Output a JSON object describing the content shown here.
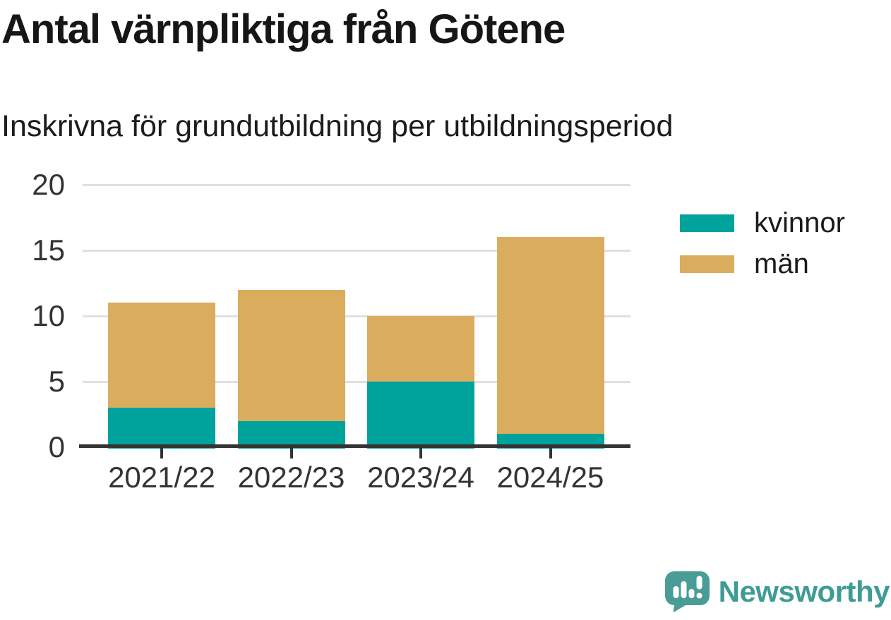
{
  "header": {
    "title": "Antal värnpliktiga från Götene",
    "subtitle": "Inskrivna för grundutbildning per utbildningsperiod"
  },
  "chart_data": {
    "type": "bar",
    "stacked": true,
    "title": "Antal värnpliktiga från Götene",
    "subtitle": "Inskrivna för grundutbildning per utbildningsperiod",
    "categories": [
      "2021/22",
      "2022/23",
      "2023/24",
      "2024/25"
    ],
    "series": [
      {
        "name": "kvinnor",
        "color": "#00A39B",
        "values": [
          3,
          2,
          5,
          1
        ]
      },
      {
        "name": "män",
        "color": "#DAAD5E",
        "values": [
          8,
          10,
          5,
          15
        ]
      }
    ],
    "totals": [
      11,
      12,
      10,
      16
    ],
    "xlabel": "",
    "ylabel": "",
    "ylim": [
      0,
      20
    ],
    "yticks": [
      0,
      5,
      10,
      15,
      20
    ],
    "grid": true,
    "gridline_color": "#E0E0E0",
    "axis_color": "#333333",
    "tick_label_color": "#333333",
    "legend_position": "right"
  },
  "footer": {
    "brand": "Newsworthy",
    "brand_color": "#3F9C95",
    "icon_color": "#4A9D96"
  }
}
